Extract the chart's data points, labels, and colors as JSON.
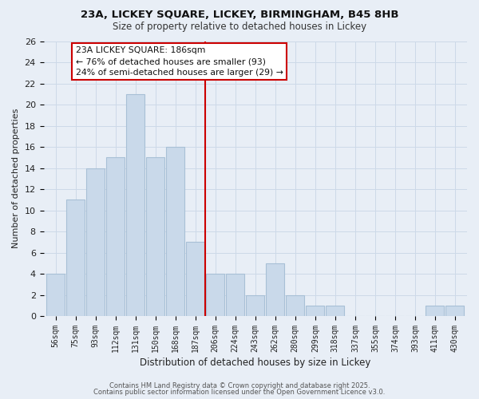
{
  "title1": "23A, LICKEY SQUARE, LICKEY, BIRMINGHAM, B45 8HB",
  "title2": "Size of property relative to detached houses in Lickey",
  "xlabel": "Distribution of detached houses by size in Lickey",
  "ylabel": "Number of detached properties",
  "bar_color": "#c9d9ea",
  "bar_edge_color": "#a8c0d6",
  "categories": [
    "56sqm",
    "75sqm",
    "93sqm",
    "112sqm",
    "131sqm",
    "150sqm",
    "168sqm",
    "187sqm",
    "206sqm",
    "224sqm",
    "243sqm",
    "262sqm",
    "280sqm",
    "299sqm",
    "318sqm",
    "337sqm",
    "355sqm",
    "374sqm",
    "393sqm",
    "411sqm",
    "430sqm"
  ],
  "values": [
    4,
    11,
    14,
    15,
    21,
    15,
    16,
    7,
    4,
    4,
    2,
    5,
    2,
    1,
    1,
    0,
    0,
    0,
    0,
    1,
    1
  ],
  "vline_x": 7.5,
  "vline_color": "#cc0000",
  "ylim": [
    0,
    26
  ],
  "yticks": [
    0,
    2,
    4,
    6,
    8,
    10,
    12,
    14,
    16,
    18,
    20,
    22,
    24,
    26
  ],
  "annotation_title": "23A LICKEY SQUARE: 186sqm",
  "annotation_line1": "← 76% of detached houses are smaller (93)",
  "annotation_line2": "24% of semi-detached houses are larger (29) →",
  "annotation_box_color": "#ffffff",
  "annotation_box_edge": "#cc0000",
  "grid_color": "#cdd9e8",
  "bg_color": "#e8eef6",
  "footer1": "Contains HM Land Registry data © Crown copyright and database right 2025.",
  "footer2": "Contains public sector information licensed under the Open Government Licence v3.0."
}
